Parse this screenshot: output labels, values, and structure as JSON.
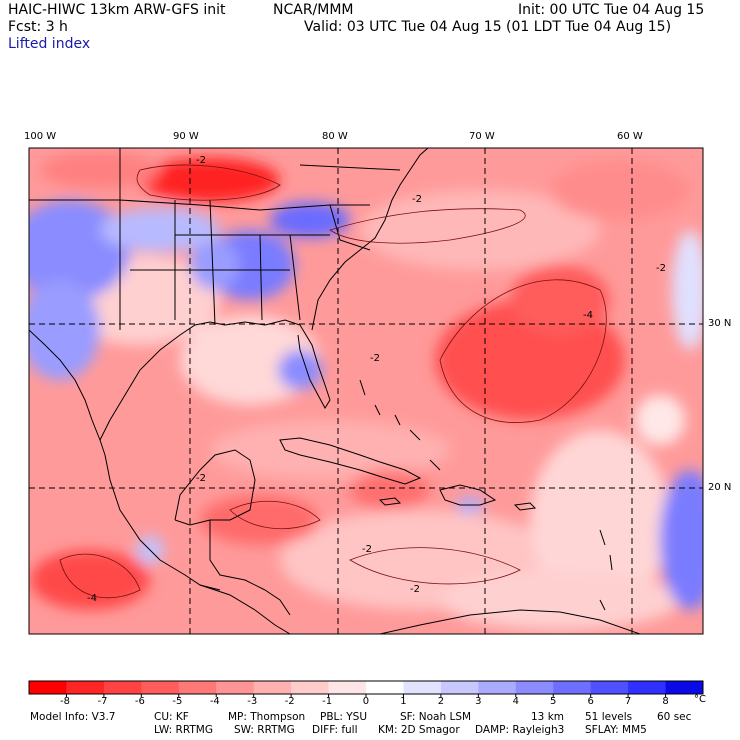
{
  "header": {
    "title": "HAIC-HIWC 13km ARW-GFS init",
    "org": "NCAR/MMM",
    "init": "Init: 00 UTC Tue 04 Aug 15",
    "fcst": "Fcst:    3 h",
    "valid": "Valid: 03 UTC Tue 04 Aug 15 (01 LDT Tue 04 Aug 15)",
    "field": "Lifted index"
  },
  "map": {
    "lon_labels": [
      "100 W",
      "90 W",
      "80 W",
      "70 W",
      "60 W"
    ],
    "lat_labels": [
      "30 N",
      "20 N"
    ],
    "contour_labels": [
      "-2",
      "-4"
    ],
    "colors": {
      "negative_strong": "#ff1a1a",
      "negative_light": "#ffd6d6",
      "neutral": "#ffffff",
      "positive_light": "#d6d9ff",
      "positive_strong": "#2020e0",
      "land_outline": "#000000",
      "grid": "#000000"
    }
  },
  "colorbar": {
    "ticks": [
      "-8",
      "-7",
      "-6",
      "-5",
      "-4",
      "-3",
      "-2",
      "-1",
      "0",
      "1",
      "2",
      "3",
      "4",
      "5",
      "6",
      "7",
      "8"
    ],
    "unit": "°C",
    "colors": [
      "#ff0000",
      "#ff2525",
      "#ff4242",
      "#ff5c5c",
      "#ff7878",
      "#ff9494",
      "#ffb0b0",
      "#ffcccc",
      "#ffe6e6",
      "#ffffff",
      "#e3e3ff",
      "#c8c8ff",
      "#aaaaff",
      "#8c8cff",
      "#6f6fff",
      "#5050ff",
      "#3030ff",
      "#0a0ae8"
    ]
  },
  "footer": {
    "line1": [
      "Model Info: V3.7",
      "CU: KF",
      "MP: Thompson",
      "PBL: YSU",
      "SF: Noah LSM",
      "13 km",
      "51 levels",
      "60 sec"
    ],
    "line2": [
      "LW: RRTMG",
      "SW: RRTMG",
      "DIFF: full",
      "KM: 2D Smagor",
      "DAMP: Rayleigh3",
      "SFLAY: MM5"
    ]
  }
}
